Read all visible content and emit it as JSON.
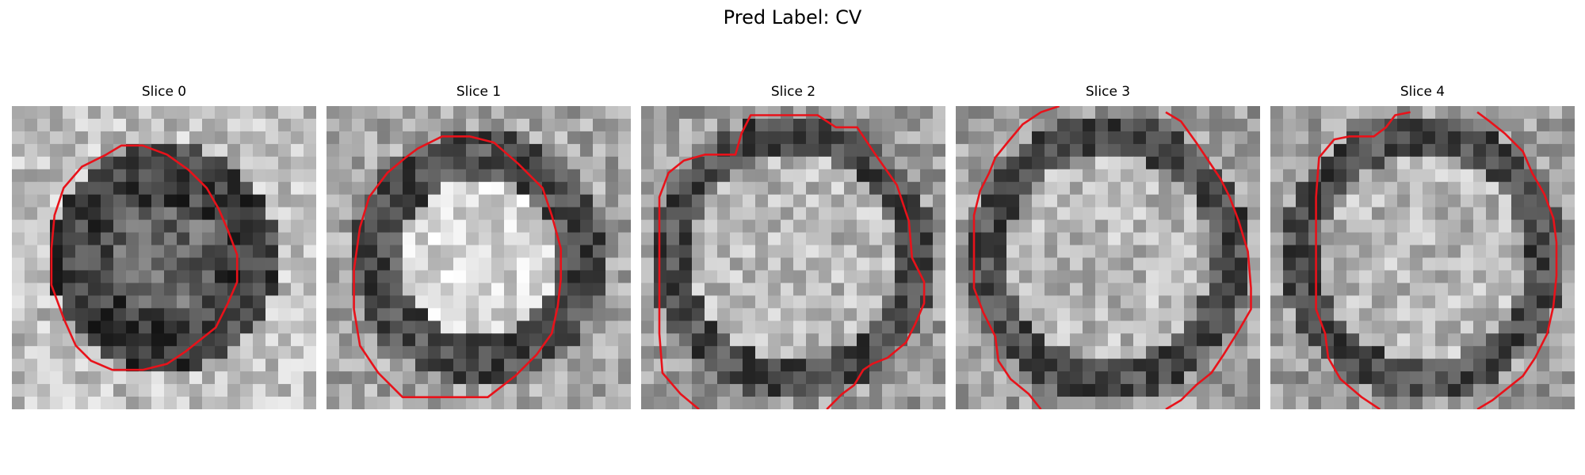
{
  "figure": {
    "title": "Pred Label: CV"
  },
  "panels": [
    {
      "title": "Slice 0",
      "seed": 11,
      "tone": "dark-blob",
      "contour": [
        [
          0.31,
          0.16
        ],
        [
          0.36,
          0.13
        ],
        [
          0.43,
          0.13
        ],
        [
          0.51,
          0.16
        ],
        [
          0.58,
          0.21
        ],
        [
          0.64,
          0.27
        ],
        [
          0.68,
          0.34
        ],
        [
          0.71,
          0.41
        ],
        [
          0.74,
          0.49
        ],
        [
          0.74,
          0.58
        ],
        [
          0.71,
          0.65
        ],
        [
          0.67,
          0.73
        ],
        [
          0.62,
          0.77
        ],
        [
          0.57,
          0.81
        ],
        [
          0.51,
          0.85
        ],
        [
          0.43,
          0.87
        ],
        [
          0.33,
          0.87
        ],
        [
          0.26,
          0.84
        ],
        [
          0.21,
          0.79
        ],
        [
          0.17,
          0.7
        ],
        [
          0.13,
          0.59
        ],
        [
          0.13,
          0.47
        ],
        [
          0.14,
          0.36
        ],
        [
          0.17,
          0.27
        ],
        [
          0.23,
          0.2
        ],
        [
          0.31,
          0.16
        ]
      ],
      "contour_closed": true
    },
    {
      "title": "Slice 1",
      "seed": 23,
      "tone": "light-blob",
      "contour": [
        [
          0.3,
          0.14
        ],
        [
          0.38,
          0.1
        ],
        [
          0.47,
          0.1
        ],
        [
          0.55,
          0.12
        ],
        [
          0.63,
          0.19
        ],
        [
          0.71,
          0.27
        ],
        [
          0.74,
          0.36
        ],
        [
          0.77,
          0.47
        ],
        [
          0.77,
          0.57
        ],
        [
          0.76,
          0.66
        ],
        [
          0.74,
          0.75
        ],
        [
          0.69,
          0.82
        ],
        [
          0.62,
          0.89
        ],
        [
          0.53,
          0.96
        ],
        [
          0.44,
          0.96
        ],
        [
          0.35,
          0.96
        ],
        [
          0.25,
          0.96
        ],
        [
          0.17,
          0.88
        ],
        [
          0.11,
          0.79
        ],
        [
          0.09,
          0.67
        ],
        [
          0.09,
          0.54
        ],
        [
          0.11,
          0.4
        ],
        [
          0.14,
          0.3
        ],
        [
          0.2,
          0.22
        ],
        [
          0.26,
          0.17
        ],
        [
          0.3,
          0.14
        ]
      ],
      "contour_closed": true
    },
    {
      "title": "Slice 2",
      "seed": 37,
      "tone": "light-center",
      "contour": [
        [
          0.19,
          1.0
        ],
        [
          0.13,
          0.95
        ],
        [
          0.07,
          0.88
        ],
        [
          0.06,
          0.75
        ],
        [
          0.06,
          0.6
        ],
        [
          0.06,
          0.45
        ],
        [
          0.06,
          0.3
        ],
        [
          0.09,
          0.22
        ],
        [
          0.14,
          0.18
        ],
        [
          0.21,
          0.16
        ],
        [
          0.31,
          0.16
        ],
        [
          0.33,
          0.09
        ],
        [
          0.36,
          0.03
        ],
        [
          0.47,
          0.03
        ],
        [
          0.58,
          0.03
        ],
        [
          0.64,
          0.07
        ],
        [
          0.71,
          0.07
        ],
        [
          0.77,
          0.16
        ],
        [
          0.84,
          0.26
        ],
        [
          0.88,
          0.38
        ],
        [
          0.89,
          0.5
        ],
        [
          0.93,
          0.58
        ],
        [
          0.93,
          0.65
        ],
        [
          0.9,
          0.72
        ],
        [
          0.87,
          0.78
        ],
        [
          0.81,
          0.83
        ],
        [
          0.76,
          0.85
        ],
        [
          0.73,
          0.87
        ],
        [
          0.7,
          0.92
        ],
        [
          0.66,
          0.95
        ],
        [
          0.61,
          1.0
        ]
      ],
      "contour_closed": false
    },
    {
      "title": "Slice 3",
      "seed": 53,
      "tone": "light-center",
      "contour": [
        [
          0.28,
          1.0
        ],
        [
          0.24,
          0.95
        ],
        [
          0.18,
          0.9
        ],
        [
          0.14,
          0.84
        ],
        [
          0.13,
          0.76
        ],
        [
          0.09,
          0.68
        ],
        [
          0.06,
          0.6
        ],
        [
          0.06,
          0.48
        ],
        [
          0.06,
          0.36
        ],
        [
          0.08,
          0.28
        ],
        [
          0.11,
          0.22
        ],
        [
          0.13,
          0.17
        ],
        [
          0.17,
          0.12
        ],
        [
          0.22,
          0.06
        ],
        [
          0.28,
          0.02
        ],
        [
          0.34,
          0.0
        ]
      ],
      "contour_closed": false
    },
    {
      "title": "Slice 4",
      "seed": 71,
      "tone": "light-center",
      "contour": [
        [
          0.36,
          1.0
        ],
        [
          0.3,
          0.96
        ],
        [
          0.23,
          0.9
        ],
        [
          0.19,
          0.83
        ],
        [
          0.18,
          0.75
        ],
        [
          0.15,
          0.67
        ],
        [
          0.15,
          0.55
        ],
        [
          0.15,
          0.43
        ],
        [
          0.15,
          0.3
        ],
        [
          0.16,
          0.17
        ],
        [
          0.21,
          0.11
        ],
        [
          0.26,
          0.1
        ],
        [
          0.34,
          0.1
        ],
        [
          0.38,
          0.07
        ],
        [
          0.41,
          0.03
        ],
        [
          0.46,
          0.02
        ]
      ],
      "contour_closed": false
    }
  ],
  "extra_contours": [
    {
      "panel": 3,
      "points": [
        [
          0.69,
          0.02
        ],
        [
          0.74,
          0.05
        ],
        [
          0.79,
          0.12
        ],
        [
          0.83,
          0.18
        ],
        [
          0.87,
          0.24
        ],
        [
          0.9,
          0.3
        ],
        [
          0.93,
          0.38
        ],
        [
          0.96,
          0.48
        ],
        [
          0.97,
          0.6
        ],
        [
          0.97,
          0.67
        ],
        [
          0.93,
          0.74
        ],
        [
          0.88,
          0.82
        ],
        [
          0.84,
          0.88
        ],
        [
          0.79,
          0.92
        ],
        [
          0.74,
          0.97
        ],
        [
          0.69,
          1.0
        ]
      ]
    },
    {
      "panel": 4,
      "points": [
        [
          0.68,
          0.02
        ],
        [
          0.72,
          0.05
        ],
        [
          0.77,
          0.09
        ],
        [
          0.83,
          0.15
        ],
        [
          0.86,
          0.22
        ],
        [
          0.9,
          0.29
        ],
        [
          0.93,
          0.37
        ],
        [
          0.94,
          0.45
        ],
        [
          0.94,
          0.56
        ],
        [
          0.93,
          0.66
        ],
        [
          0.91,
          0.75
        ],
        [
          0.87,
          0.83
        ],
        [
          0.83,
          0.89
        ],
        [
          0.78,
          0.93
        ],
        [
          0.73,
          0.97
        ],
        [
          0.68,
          1.0
        ]
      ]
    }
  ],
  "colors": {
    "contour": "#e8121a",
    "background": "#ffffff"
  }
}
